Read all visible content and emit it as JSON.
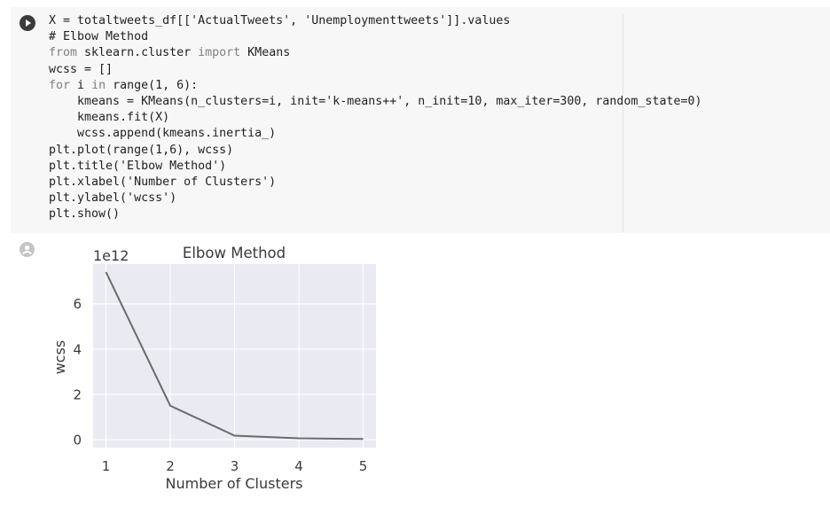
{
  "code_cell": {
    "lines": [
      [
        {
          "t": "X = totaltweets_df[['ActualTweets', 'Unemploymenttweets']].values",
          "c": ""
        }
      ],
      [
        {
          "t": "# Elbow Method",
          "c": "cm"
        }
      ],
      [
        {
          "t": "from",
          "c": "kw"
        },
        {
          "t": " sklearn.cluster ",
          "c": ""
        },
        {
          "t": "import",
          "c": "kw"
        },
        {
          "t": " KMeans",
          "c": ""
        }
      ],
      [
        {
          "t": "wcss = []",
          "c": ""
        }
      ],
      [
        {
          "t": "for",
          "c": "kw"
        },
        {
          "t": " i ",
          "c": ""
        },
        {
          "t": "in",
          "c": "kw"
        },
        {
          "t": " range(1, 6):",
          "c": ""
        }
      ],
      [
        {
          "t": "    kmeans = KMeans(n_clusters=i, init='k-means++', n_init=10, max_iter=300, random_state=0)",
          "c": ""
        }
      ],
      [
        {
          "t": "    kmeans.fit(X)",
          "c": ""
        }
      ],
      [
        {
          "t": "    wcss.append(kmeans.inertia_)",
          "c": ""
        }
      ],
      [
        {
          "t": "plt.plot(range(1,6), wcss)",
          "c": ""
        }
      ],
      [
        {
          "t": "plt.title('Elbow Method')",
          "c": ""
        }
      ],
      [
        {
          "t": "plt.xlabel('Number of Clusters')",
          "c": ""
        }
      ],
      [
        {
          "t": "plt.ylabel('wcss')",
          "c": ""
        }
      ],
      [
        {
          "t": "plt.show()",
          "c": ""
        }
      ]
    ],
    "run_icon": "play-icon",
    "output_icon": "output-icon"
  },
  "chart_data": {
    "type": "line",
    "title": "Elbow Method",
    "xlabel": "Number of Clusters",
    "ylabel": "wcss",
    "offset_text": "1e12",
    "x": [
      1,
      2,
      3,
      4,
      5
    ],
    "series": [
      {
        "values": [
          7.4,
          1.5,
          0.18,
          0.06,
          0.03
        ]
      }
    ],
    "xticks": [
      "1",
      "2",
      "3",
      "4",
      "5"
    ],
    "yticks": [
      "0",
      "2",
      "4",
      "6"
    ],
    "ytick_values": [
      0,
      2,
      4,
      6
    ],
    "xlim": [
      0.8,
      5.2
    ],
    "ylim": [
      -0.35,
      7.75
    ],
    "grid": true,
    "colors": {
      "line": "#6b6b6b",
      "background": "#eaeaf2",
      "grid": "#ffffff",
      "text": "#3a3a3a"
    }
  }
}
